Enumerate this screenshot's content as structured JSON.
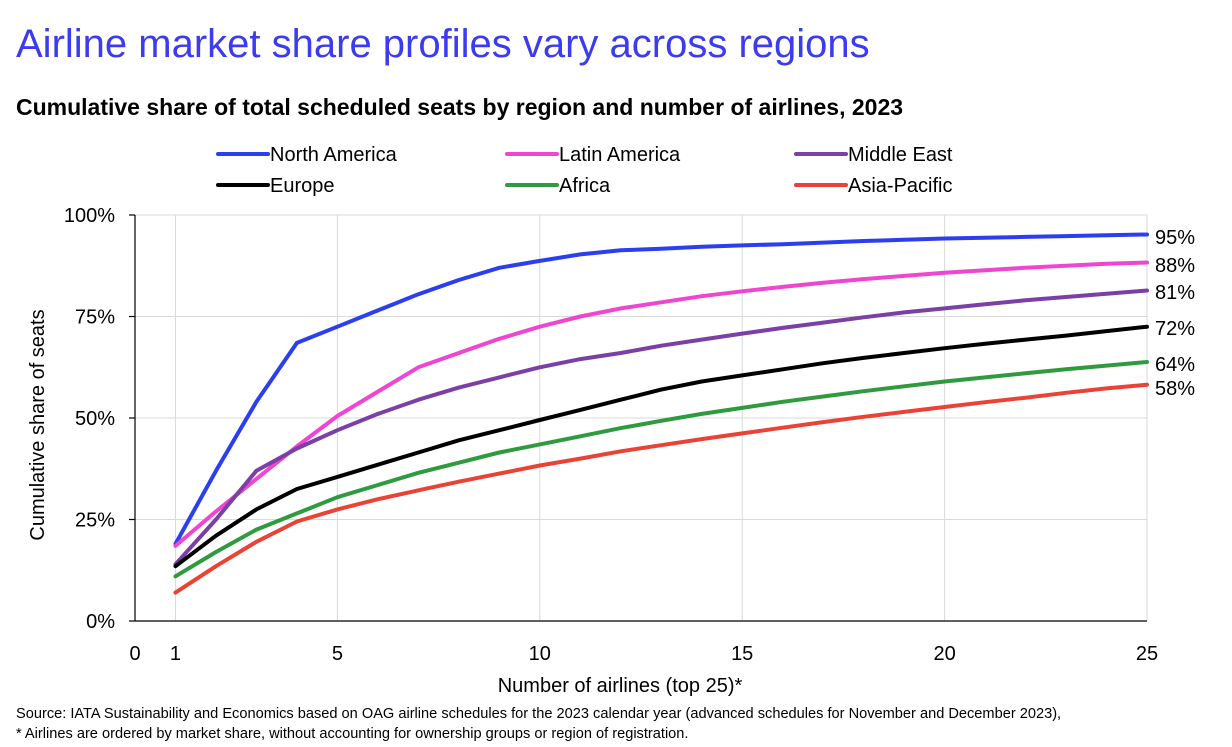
{
  "title": "Airline market share profiles vary across regions",
  "subtitle": "Cumulative share of total scheduled seats by region and number of airlines, 2023",
  "source": {
    "line1": "Source: IATA Sustainability and Economics based on OAG airline schedules for the 2023 calendar year (advanced schedules for November and December 2023),",
    "line2": "* Airlines are ordered by market share, without accounting for ownership groups or region of registration."
  },
  "colors": {
    "title": "#3b3bf2",
    "gridline": "#d9d9d9",
    "axis": "#000000"
  },
  "chart_data": {
    "type": "line",
    "title": "Cumulative share of total scheduled seats by region and number of airlines, 2023",
    "xlabel": "Number of airlines (top 25)*",
    "ylabel": "Cumulative share of seats",
    "xlim": [
      0,
      25
    ],
    "ylim": [
      0,
      100
    ],
    "x_ticks": [
      0,
      1,
      5,
      10,
      15,
      20,
      25
    ],
    "x_tick_labels": [
      "0",
      "1",
      "5",
      "10",
      "15",
      "20",
      "25"
    ],
    "y_ticks": [
      0,
      25,
      50,
      75,
      100
    ],
    "y_tick_labels": [
      "0%",
      "25%",
      "50%",
      "75%",
      "100%"
    ],
    "grid": true,
    "legend_position": "top",
    "x": [
      1,
      2,
      3,
      4,
      5,
      6,
      7,
      8,
      9,
      10,
      11,
      12,
      13,
      14,
      15,
      16,
      17,
      18,
      19,
      20,
      21,
      22,
      23,
      24,
      25
    ],
    "series": [
      {
        "name": "North America",
        "color": "#2b3ff0",
        "end_label": "95%",
        "values": [
          19,
          37,
          54,
          68.5,
          72.5,
          76.5,
          80.5,
          84,
          87,
          88.7,
          90.3,
          91.3,
          91.7,
          92.2,
          92.5,
          92.8,
          93.2,
          93.6,
          93.9,
          94.2,
          94.4,
          94.6,
          94.8,
          95,
          95.2
        ]
      },
      {
        "name": "Latin America",
        "color": "#ef45d0",
        "end_label": "88%",
        "values": [
          18.5,
          27,
          35,
          43,
          50.5,
          56.5,
          62.5,
          66,
          69.5,
          72.5,
          75,
          77,
          78.5,
          80,
          81.2,
          82.3,
          83.3,
          84.2,
          85,
          85.8,
          86.4,
          87,
          87.5,
          88,
          88.3
        ]
      },
      {
        "name": "Middle East",
        "color": "#7b3fa6",
        "end_label": "81%",
        "values": [
          14,
          25,
          37,
          42.5,
          47,
          51,
          54.5,
          57.5,
          60,
          62.5,
          64.5,
          66,
          67.8,
          69.3,
          70.8,
          72.2,
          73.5,
          74.8,
          76,
          77,
          78,
          79,
          79.8,
          80.6,
          81.4
        ]
      },
      {
        "name": "Europe",
        "color": "#000000",
        "end_label": "72%",
        "values": [
          13.5,
          21,
          27.5,
          32.5,
          35.5,
          38.5,
          41.5,
          44.5,
          47,
          49.5,
          52,
          54.5,
          57,
          59,
          60.5,
          62,
          63.5,
          64.8,
          66,
          67.2,
          68.3,
          69.3,
          70.3,
          71.4,
          72.5
        ]
      },
      {
        "name": "Africa",
        "color": "#2f9a3e",
        "end_label": "64%",
        "values": [
          11,
          17,
          22.5,
          26.5,
          30.5,
          33.5,
          36.5,
          39,
          41.5,
          43.5,
          45.5,
          47.5,
          49.3,
          51,
          52.5,
          54,
          55.3,
          56.6,
          57.8,
          59,
          60,
          61,
          62,
          62.9,
          63.8
        ]
      },
      {
        "name": "Asia-Pacific",
        "color": "#ea4335",
        "end_label": "58%",
        "values": [
          7,
          13.5,
          19.5,
          24.5,
          27.5,
          30,
          32.2,
          34.3,
          36.3,
          38.3,
          40,
          41.8,
          43.3,
          44.8,
          46.2,
          47.6,
          49,
          50.3,
          51.5,
          52.7,
          53.9,
          55,
          56.2,
          57.3,
          58.2
        ]
      }
    ]
  }
}
